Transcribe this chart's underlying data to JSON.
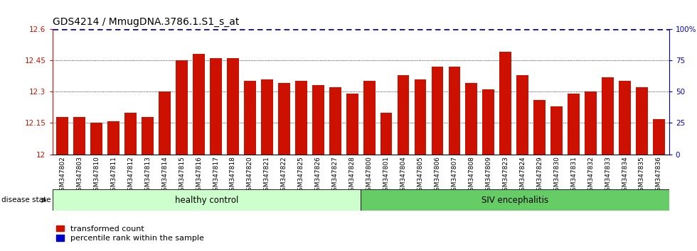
{
  "title": "GDS4214 / MmugDNA.3786.1.S1_s_at",
  "samples": [
    "GSM347802",
    "GSM347803",
    "GSM347810",
    "GSM347811",
    "GSM347812",
    "GSM347813",
    "GSM347814",
    "GSM347815",
    "GSM347816",
    "GSM347817",
    "GSM347818",
    "GSM347820",
    "GSM347821",
    "GSM347822",
    "GSM347825",
    "GSM347826",
    "GSM347827",
    "GSM347828",
    "GSM347800",
    "GSM347801",
    "GSM347804",
    "GSM347805",
    "GSM347806",
    "GSM347807",
    "GSM347808",
    "GSM347809",
    "GSM347823",
    "GSM347824",
    "GSM347829",
    "GSM347830",
    "GSM347831",
    "GSM347832",
    "GSM347833",
    "GSM347834",
    "GSM347835",
    "GSM347836"
  ],
  "values": [
    12.18,
    12.18,
    12.15,
    12.16,
    12.2,
    12.18,
    12.3,
    12.45,
    12.48,
    12.46,
    12.46,
    12.35,
    12.36,
    12.34,
    12.35,
    12.33,
    12.32,
    12.29,
    12.35,
    12.2,
    12.38,
    12.36,
    12.42,
    12.42,
    12.34,
    12.31,
    12.49,
    12.38,
    12.26,
    12.23,
    12.29,
    12.3,
    12.37,
    12.35,
    12.32,
    12.17
  ],
  "healthy_count": 18,
  "bar_color": "#CC1100",
  "percentile_color": "#0000CC",
  "ylim": [
    12.0,
    12.6
  ],
  "yticks": [
    12.0,
    12.15,
    12.3,
    12.45,
    12.6
  ],
  "ytick_labels": [
    "12",
    "12.15",
    "12.3",
    "12.45",
    "12.6"
  ],
  "right_yticks": [
    0,
    25,
    50,
    75,
    100
  ],
  "right_ytick_labels": [
    "0",
    "25",
    "50",
    "75",
    "100%"
  ],
  "dotted_lines": [
    12.15,
    12.3,
    12.45
  ],
  "healthy_label": "healthy control",
  "siv_label": "SIV encephalitis",
  "healthy_color": "#CCFFCC",
  "siv_color": "#66CC66",
  "disease_state_label": "disease state",
  "legend_bar_label": "transformed count",
  "legend_dot_label": "percentile rank within the sample",
  "background_color": "#FFFFFF",
  "title_fontsize": 10,
  "tick_fontsize": 7.5,
  "bar_width": 0.7,
  "xlabel_fontsize": 6.5,
  "xtick_bg_color": "#DDDDDD"
}
